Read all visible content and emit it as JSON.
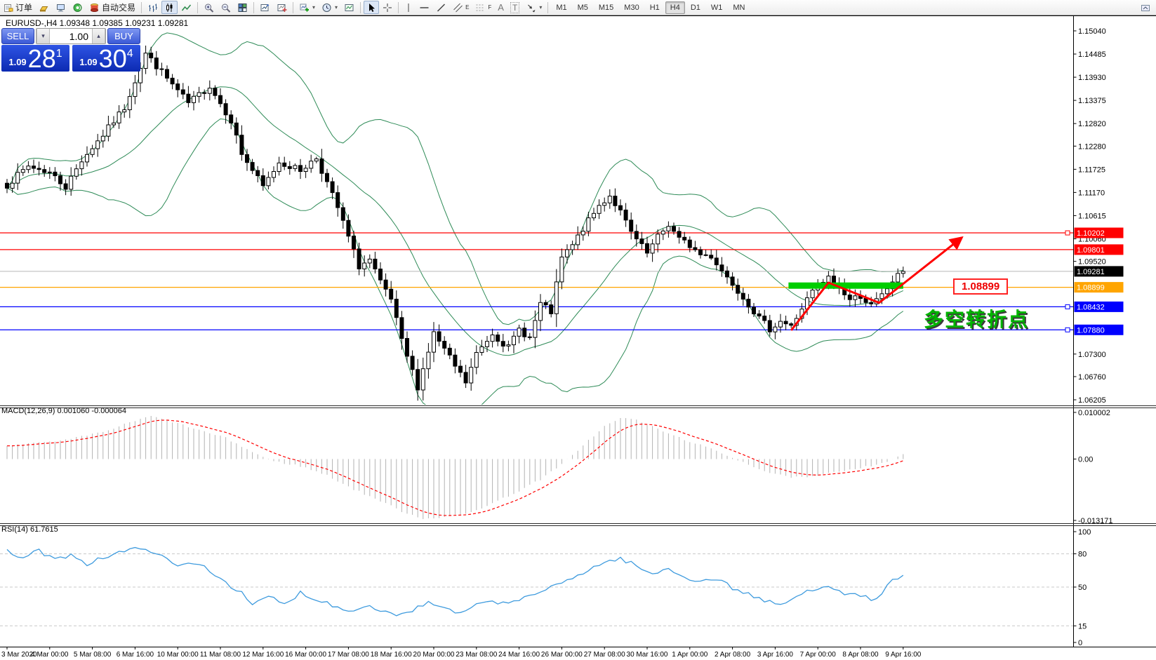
{
  "toolbar": {
    "order_label": "订单",
    "autotrade_label": "自动交易",
    "text_tool_label": "A",
    "textbox_tool_label": "T",
    "channel_tool_sub": "E",
    "fibo_tool_sub": "F",
    "timeframes": [
      "M1",
      "M5",
      "M15",
      "M30",
      "H1",
      "H4",
      "D1",
      "W1",
      "MN"
    ],
    "active_timeframe": "H4"
  },
  "symbol_header": "EURUSD-,H4  1.09348 1.09385 1.09231 1.09281",
  "trade_panel": {
    "sell_label": "SELL",
    "buy_label": "BUY",
    "volume": "1.00",
    "sell_price_small": "1.09",
    "sell_price_big": "28",
    "sell_price_sup": "1",
    "buy_price_small": "1.09",
    "buy_price_big": "30",
    "buy_price_sup": "4"
  },
  "annotations": {
    "price_tag": "1.08899",
    "cn_text": "多空转折点"
  },
  "indicators": {
    "macd_label": "MACD(12,26,9) 0.001060 -0.000064",
    "rsi_label": "RSI(14) 61.7615"
  },
  "chart_data": [
    {
      "type": "candlestick",
      "symbol": "EURUSD-",
      "timeframe": "H4",
      "ohlc_header": {
        "open": "1.09348",
        "high": "1.09385",
        "low": "1.09231",
        "close": "1.09281"
      },
      "ylim": [
        1.06087,
        1.15376
      ],
      "grid": false,
      "y_ticks": [
        "1.15040",
        "1.14485",
        "1.13930",
        "1.13375",
        "1.12820",
        "1.12280",
        "1.11725",
        "1.11170",
        "1.10615",
        "1.10060",
        "1.09520",
        "1.07300",
        "1.06760",
        "1.06205"
      ],
      "bars_total": 169,
      "price_path": [
        [
          0,
          1.1135
        ],
        [
          4,
          1.118
        ],
        [
          8,
          1.1165
        ],
        [
          11,
          1.113
        ],
        [
          14,
          1.1195
        ],
        [
          18,
          1.1255
        ],
        [
          22,
          1.132
        ],
        [
          26,
          1.145
        ],
        [
          28,
          1.142
        ],
        [
          30,
          1.139
        ],
        [
          34,
          1.133
        ],
        [
          38,
          1.1372
        ],
        [
          42,
          1.129
        ],
        [
          44,
          1.121
        ],
        [
          48,
          1.113
        ],
        [
          51,
          1.119
        ],
        [
          55,
          1.117
        ],
        [
          58,
          1.12
        ],
        [
          62,
          1.108
        ],
        [
          64,
          1.101
        ],
        [
          66,
          1.094
        ],
        [
          68,
          1.0955
        ],
        [
          70,
          1.09
        ],
        [
          72,
          1.086
        ],
        [
          74,
          1.076
        ],
        [
          77,
          1.0652
        ],
        [
          80,
          1.078
        ],
        [
          82,
          1.074
        ],
        [
          84,
          1.07
        ],
        [
          86,
          1.0662
        ],
        [
          88,
          1.073
        ],
        [
          91,
          1.078
        ],
        [
          94,
          1.0745
        ],
        [
          96,
          1.079
        ],
        [
          98,
          1.0768
        ],
        [
          100,
          1.085
        ],
        [
          102,
          1.083
        ],
        [
          104,
          1.096
        ],
        [
          106,
          1.099
        ],
        [
          108,
          1.103
        ],
        [
          111,
          1.1085
        ],
        [
          113,
          1.111
        ],
        [
          115,
          1.107
        ],
        [
          117,
          1.102
        ],
        [
          120,
          1.097
        ],
        [
          122,
          1.101
        ],
        [
          124,
          1.104
        ],
        [
          126,
          1.1005
        ],
        [
          128,
          1.099
        ],
        [
          130,
          1.0968
        ],
        [
          132,
          1.0965
        ],
        [
          134,
          1.093
        ],
        [
          136,
          1.09
        ],
        [
          139,
          1.085
        ],
        [
          141,
          1.0815
        ],
        [
          143,
          1.079
        ],
        [
          145,
          1.081
        ],
        [
          147,
          1.0795
        ],
        [
          149,
          1.084
        ],
        [
          151,
          1.088
        ],
        [
          154,
          1.0912
        ],
        [
          156,
          1.089
        ],
        [
          158,
          1.086
        ],
        [
          160,
          1.087
        ],
        [
          162,
          1.0845
        ],
        [
          164,
          1.087
        ],
        [
          166,
          1.0905
        ],
        [
          168,
          1.0928
        ]
      ],
      "bollinger": {
        "period": 20,
        "deviation": 2,
        "color": "#2E8B57"
      },
      "hlines": [
        {
          "price": 1.10202,
          "color": "#FF0000",
          "label": "1.10202",
          "handle": true
        },
        {
          "price": 1.09801,
          "color": "#FF0000",
          "label": "1.09801",
          "handle": false
        },
        {
          "price": 1.08899,
          "color": "#FFA500",
          "label": "1.08899",
          "handle": false
        },
        {
          "price": 1.08432,
          "color": "#0000FF",
          "label": "1.08432",
          "handle": true
        },
        {
          "price": 1.0788,
          "color": "#0000FF",
          "label": "1.07880",
          "handle": true
        }
      ],
      "current_price": {
        "value": 1.09281,
        "label": "1.09281",
        "tag_color": "#000000",
        "line_color": "#b8b8b8"
      },
      "green_bar": {
        "bar1": 146.5,
        "bar2": 168,
        "price": 1.0894,
        "thickness": 9,
        "color": "#00CE00"
      },
      "arrow": {
        "bars": [
          147,
          154,
          163.5,
          178.5
        ],
        "prices": [
          1.0787,
          1.0901,
          1.0853,
          1.1004
        ],
        "color": "#FF0000"
      },
      "x_labels": [
        "3 Mar 2020",
        "4 Mar 00:00",
        "5 Mar 08:00",
        "6 Mar 16:00",
        "10 Mar 00:00",
        "11 Mar 08:00",
        "12 Mar 16:00",
        "16 Mar 00:00",
        "17 Mar 08:00",
        "18 Mar 16:00",
        "20 Mar 00:00",
        "23 Mar 08:00",
        "24 Mar 16:00",
        "26 Mar 00:00",
        "27 Mar 08:00",
        "30 Mar 16:00",
        "1 Apr 00:00",
        "2 Apr 08:00",
        "3 Apr 16:00",
        "7 Apr 00:00",
        "8 Apr 08:00",
        "9 Apr 16:00"
      ],
      "label_every_bars": 8
    },
    {
      "type": "macd-histogram",
      "title": "MACD(12,26,9)",
      "main_value": 0.00106,
      "signal_value": -6.4e-05,
      "ylim": [
        -0.013171,
        0.010002
      ],
      "y_ticks": [
        "0.010002",
        "0.00",
        "-0.013171"
      ],
      "histogram_color": "#B2B2B2",
      "signal_color": "#FF0000",
      "keyframes": [
        [
          0,
          0.003
        ],
        [
          10,
          0.0038
        ],
        [
          18,
          0.0058
        ],
        [
          24,
          0.0082
        ],
        [
          27,
          0.0092
        ],
        [
          31,
          0.008
        ],
        [
          36,
          0.0062
        ],
        [
          41,
          0.0045
        ],
        [
          46,
          0.0015
        ],
        [
          50,
          -0.0005
        ],
        [
          55,
          -0.0015
        ],
        [
          60,
          -0.0035
        ],
        [
          65,
          -0.0065
        ],
        [
          70,
          -0.009
        ],
        [
          74,
          -0.0112
        ],
        [
          78,
          -0.0128
        ],
        [
          82,
          -0.0124
        ],
        [
          86,
          -0.0118
        ],
        [
          90,
          -0.01
        ],
        [
          95,
          -0.0074
        ],
        [
          100,
          -0.0044
        ],
        [
          104,
          -0.0012
        ],
        [
          108,
          0.003
        ],
        [
          112,
          0.007
        ],
        [
          115,
          0.0088
        ],
        [
          118,
          0.0084
        ],
        [
          122,
          0.0064
        ],
        [
          126,
          0.0046
        ],
        [
          130,
          0.003
        ],
        [
          134,
          0.0012
        ],
        [
          138,
          -0.0006
        ],
        [
          142,
          -0.0026
        ],
        [
          146,
          -0.0038
        ],
        [
          150,
          -0.004
        ],
        [
          154,
          -0.0031
        ],
        [
          158,
          -0.0022
        ],
        [
          162,
          -0.0014
        ],
        [
          166,
          -0.0002
        ],
        [
          168,
          0.0011
        ]
      ]
    },
    {
      "type": "line",
      "title": "RSI(14)",
      "current_value": 61.7615,
      "ylim": [
        0,
        100
      ],
      "y_ticks": [
        "100",
        "80",
        "50",
        "15",
        "0"
      ],
      "levels": [
        80,
        50,
        15
      ],
      "level_color": "#c8c8c8",
      "color": "#3E9BDE",
      "keyframes": [
        [
          0,
          82
        ],
        [
          3,
          76
        ],
        [
          6,
          83
        ],
        [
          9,
          74
        ],
        [
          12,
          80
        ],
        [
          15,
          71
        ],
        [
          18,
          77
        ],
        [
          22,
          82
        ],
        [
          26,
          86
        ],
        [
          29,
          77
        ],
        [
          32,
          69
        ],
        [
          36,
          72
        ],
        [
          40,
          58
        ],
        [
          44,
          44
        ],
        [
          46,
          33
        ],
        [
          49,
          42
        ],
        [
          52,
          34
        ],
        [
          55,
          45
        ],
        [
          58,
          39
        ],
        [
          61,
          34
        ],
        [
          64,
          28
        ],
        [
          67,
          34
        ],
        [
          70,
          29
        ],
        [
          73,
          25
        ],
        [
          76,
          29
        ],
        [
          79,
          36
        ],
        [
          82,
          30
        ],
        [
          85,
          26
        ],
        [
          88,
          33
        ],
        [
          91,
          38
        ],
        [
          94,
          34
        ],
        [
          97,
          41
        ],
        [
          100,
          46
        ],
        [
          103,
          51
        ],
        [
          106,
          58
        ],
        [
          109,
          66
        ],
        [
          112,
          72
        ],
        [
          115,
          76
        ],
        [
          118,
          69
        ],
        [
          121,
          61
        ],
        [
          124,
          67
        ],
        [
          127,
          59
        ],
        [
          130,
          55
        ],
        [
          133,
          58
        ],
        [
          136,
          49
        ],
        [
          139,
          44
        ],
        [
          142,
          37
        ],
        [
          145,
          34
        ],
        [
          148,
          41
        ],
        [
          151,
          48
        ],
        [
          154,
          52
        ],
        [
          157,
          45
        ],
        [
          160,
          41
        ],
        [
          163,
          39
        ],
        [
          166,
          56
        ],
        [
          168,
          62
        ]
      ]
    }
  ]
}
